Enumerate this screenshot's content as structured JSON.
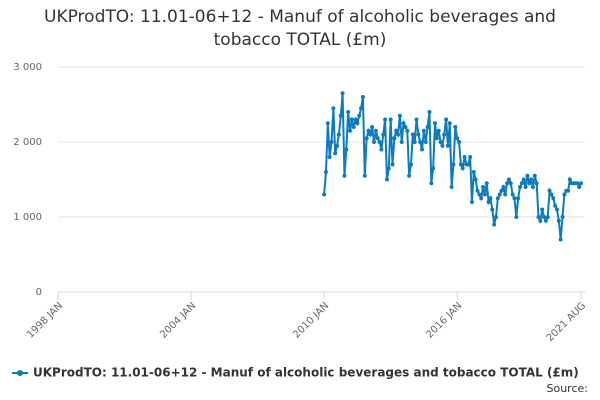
{
  "chart_data": {
    "type": "line",
    "title": "UKProdTO: 11.01-06+12 - Manuf of alcoholic beverages and tobacco TOTAL (£m)",
    "source": "Source:",
    "x": [
      "2010 JAN",
      "2010 FEB",
      "2010 MAR",
      "2010 APR",
      "2010 MAY",
      "2010 JUN",
      "2010 JUL",
      "2010 AUG",
      "2010 SEP",
      "2010 OCT",
      "2010 NOV",
      "2010 DEC",
      "2011 JAN",
      "2011 FEB",
      "2011 MAR",
      "2011 APR",
      "2011 MAY",
      "2011 JUN",
      "2011 JUL",
      "2011 AUG",
      "2011 SEP",
      "2011 OCT",
      "2011 NOV",
      "2011 DEC",
      "2012 JAN",
      "2012 FEB",
      "2012 MAR",
      "2012 APR",
      "2012 MAY",
      "2012 JUN",
      "2012 JUL",
      "2012 AUG",
      "2012 SEP",
      "2012 OCT",
      "2012 NOV",
      "2012 DEC",
      "2013 JAN",
      "2013 FEB",
      "2013 MAR",
      "2013 APR",
      "2013 MAY",
      "2013 JUN",
      "2013 JUL",
      "2013 AUG",
      "2013 SEP",
      "2013 OCT",
      "2013 NOV",
      "2013 DEC",
      "2014 JAN",
      "2014 FEB",
      "2014 MAR",
      "2014 APR",
      "2014 MAY",
      "2014 JUN",
      "2014 JUL",
      "2014 AUG",
      "2014 SEP",
      "2014 OCT",
      "2014 NOV",
      "2014 DEC",
      "2015 JAN",
      "2015 FEB",
      "2015 MAR",
      "2015 APR",
      "2015 MAY",
      "2015 JUN",
      "2015 JUL",
      "2015 AUG",
      "2015 SEP",
      "2015 OCT",
      "2015 NOV",
      "2015 DEC",
      "2016 JAN",
      "2016 FEB",
      "2016 MAR",
      "2016 APR",
      "2016 MAY",
      "2016 JUN",
      "2016 JUL",
      "2016 AUG",
      "2016 SEP",
      "2016 OCT",
      "2016 NOV",
      "2016 DEC",
      "2017 JAN",
      "2017 FEB",
      "2017 MAR",
      "2017 APR",
      "2017 MAY",
      "2017 JUN",
      "2017 JUL",
      "2017 AUG",
      "2017 SEP",
      "2017 OCT",
      "2017 NOV",
      "2017 DEC",
      "2018 JAN",
      "2018 FEB",
      "2018 MAR",
      "2018 APR",
      "2018 MAY",
      "2018 JUN",
      "2018 JUL",
      "2018 AUG",
      "2018 SEP",
      "2018 OCT",
      "2018 NOV",
      "2018 DEC",
      "2019 JAN",
      "2019 FEB",
      "2019 MAR",
      "2019 APR",
      "2019 MAY",
      "2019 JUN",
      "2019 JUL",
      "2019 AUG",
      "2019 SEP",
      "2019 OCT",
      "2019 NOV",
      "2019 DEC",
      "2020 JAN",
      "2020 FEB",
      "2020 MAR",
      "2020 APR",
      "2020 MAY",
      "2020 JUN",
      "2020 JUL",
      "2020 AUG",
      "2020 SEP",
      "2020 OCT",
      "2020 NOV",
      "2020 DEC",
      "2021 JAN",
      "2021 FEB",
      "2021 MAR",
      "2021 APR",
      "2021 MAY",
      "2021 JUN",
      "2021 JUL",
      "2021 AUG"
    ],
    "series": [
      {
        "name": "UKProdTO: 11.01-06+12 - Manuf of alcoholic beverages and tobacco TOTAL (£m)",
        "color": "#0d7bbd",
        "values": [
          1300,
          1600,
          2250,
          1800,
          2000,
          2450,
          1850,
          1950,
          2100,
          2350,
          2650,
          1550,
          1900,
          2400,
          2150,
          2300,
          2200,
          2300,
          2250,
          2350,
          2450,
          2600,
          1550,
          2050,
          2150,
          2100,
          2200,
          2000,
          2150,
          2050,
          2000,
          1900,
          2100,
          2300,
          1500,
          1650,
          2300,
          1700,
          2050,
          2150,
          2100,
          2350,
          2000,
          2250,
          2200,
          2150,
          1550,
          1700,
          2100,
          2000,
          2300,
          2100,
          2000,
          1900,
          2150,
          2000,
          2200,
          2400,
          1450,
          1650,
          2250,
          2050,
          2150,
          2000,
          1950,
          2100,
          2300,
          1950,
          2250,
          1400,
          1700,
          2200,
          2050,
          2000,
          1700,
          1650,
          1800,
          1700,
          1700,
          1800,
          1200,
          1600,
          1500,
          1350,
          1300,
          1250,
          1400,
          1300,
          1450,
          1200,
          1250,
          1100,
          900,
          1000,
          1250,
          1300,
          1350,
          1400,
          1300,
          1450,
          1500,
          1450,
          1300,
          1250,
          1000,
          1250,
          1400,
          1450,
          1500,
          1400,
          1550,
          1450,
          1500,
          1400,
          1550,
          1450,
          1000,
          950,
          1100,
          1000,
          950,
          1000,
          1350,
          1300,
          1250,
          1150,
          1100,
          950,
          700,
          1000,
          1300,
          1350,
          1350,
          1500,
          1450,
          1450,
          1450,
          1450,
          1400,
          1450
        ]
      }
    ],
    "xlim": [
      "1998 JAN",
      "2021 AUG"
    ],
    "xticks": [
      "1998 JAN",
      "2004 JAN",
      "2010 JAN",
      "2016 JAN",
      "2021 AUG"
    ],
    "ylim": [
      0,
      3000
    ],
    "yticks": [
      0,
      {
        "value": 1000,
        "label": "1 000"
      },
      {
        "value": 2000,
        "label": "2 000"
      },
      {
        "value": 3000,
        "label": "3 000"
      }
    ],
    "grid": true
  }
}
